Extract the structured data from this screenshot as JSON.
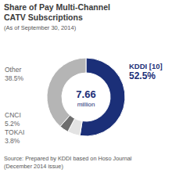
{
  "chart_data": {
    "type": "donut",
    "title": [
      "Share of Pay Multi-Channel",
      "CATV Subscriptions"
    ],
    "subtitle": "(As of September 30, 2014)",
    "center_text": [
      "7.66",
      "million"
    ],
    "categories": [
      "KDDI [10]",
      "CNCI",
      "TOKAI",
      "Other"
    ],
    "values": [
      52.5,
      5.2,
      3.8,
      38.5
    ],
    "value_labels": [
      "52.5%",
      "5.2%",
      "3.8%",
      "38.5%"
    ],
    "colors": [
      "#1b2f78",
      "#e3e3e3",
      "#6e6e6e",
      "#b5b5b5"
    ],
    "data_labels": true,
    "source": [
      "Source: Prepared by KDDI based on Hoso Journal",
      "(December 2014 issue)"
    ]
  }
}
